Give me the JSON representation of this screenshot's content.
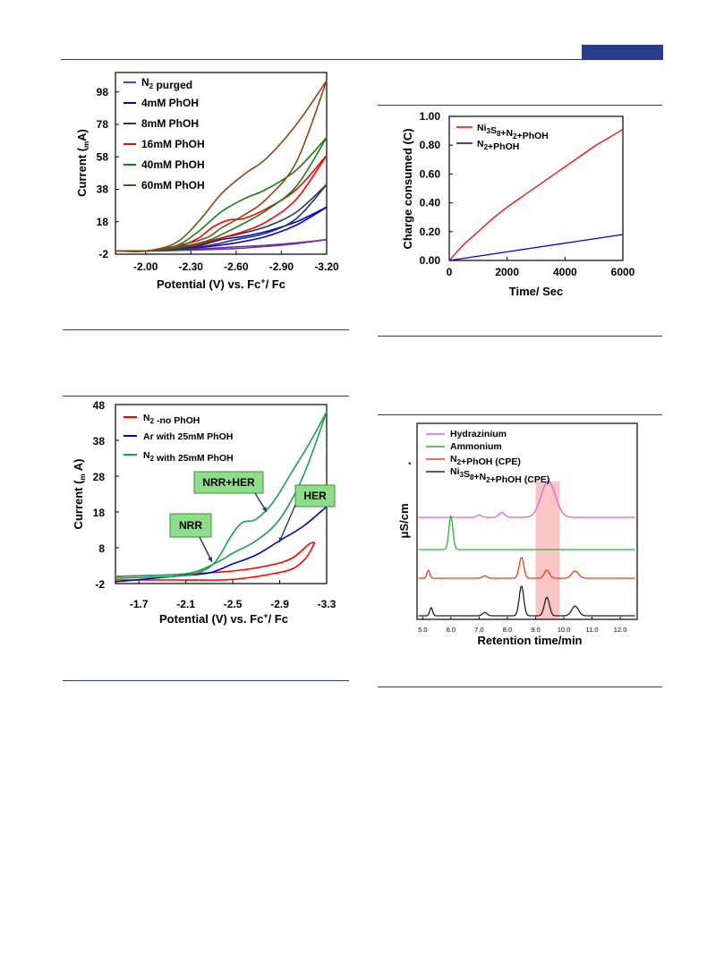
{
  "header": {
    "accent_color": "#2a3c8a",
    "rule_color": "#2e3f70"
  },
  "chart_data": [
    {
      "type": "line",
      "panel": "top-left",
      "title": "",
      "xlabel": "Potential (V) vs. Fc⁺/ Fc",
      "ylabel": "Current (μA)",
      "ylabel_prefix": "Current (",
      "ylabel_mu": "m",
      "ylabel_suffix": "A)",
      "xlabel_main": "Potential (V) vs. Fc",
      "xlabel_sup": "+",
      "xlabel_tail": "/ Fc",
      "xlim": [
        -1.8,
        -3.2
      ],
      "ylim": [
        -2,
        110
      ],
      "xticks": [
        -2.0,
        -2.3,
        -2.6,
        -2.9,
        -3.2
      ],
      "xtick_labels": [
        "-2.00",
        "-2.30",
        "-2.60",
        "-2.90",
        "-3.20"
      ],
      "yticks": [
        -2,
        18,
        38,
        58,
        78,
        98
      ],
      "ytick_labels": [
        "-2",
        "18",
        "38",
        "58",
        "78",
        "98"
      ],
      "legend_position": "top-left",
      "series": [
        {
          "name": "N₂ purged",
          "label_main": "N",
          "label_sub": "2",
          "label_tail": " purged",
          "color": "#7030a0",
          "forward": [
            [
              -1.8,
              0
            ],
            [
              -2.0,
              0
            ],
            [
              -2.2,
              0.5
            ],
            [
              -2.4,
              1.5
            ],
            [
              -2.6,
              2.5
            ],
            [
              -2.8,
              3.5
            ],
            [
              -3.0,
              5
            ],
            [
              -3.2,
              7
            ]
          ],
          "reverse": [
            [
              -3.2,
              7
            ],
            [
              -3.0,
              4.5
            ],
            [
              -2.8,
              2.8
            ],
            [
              -2.6,
              1.5
            ],
            [
              -2.4,
              0.8
            ],
            [
              -2.2,
              0.3
            ],
            [
              -2.0,
              0
            ],
            [
              -1.8,
              0
            ]
          ]
        },
        {
          "name": "4mM PhOH",
          "color": "#0000cc",
          "forward": [
            [
              -1.8,
              0
            ],
            [
              -2.0,
              0
            ],
            [
              -2.2,
              1
            ],
            [
              -2.35,
              3
            ],
            [
              -2.5,
              7
            ],
            [
              -2.65,
              9
            ],
            [
              -2.8,
              12
            ],
            [
              -3.0,
              18
            ],
            [
              -3.2,
              27
            ]
          ],
          "reverse": [
            [
              -3.2,
              27
            ],
            [
              -3.0,
              16
            ],
            [
              -2.8,
              9
            ],
            [
              -2.6,
              5
            ],
            [
              -2.4,
              2.5
            ],
            [
              -2.2,
              1
            ],
            [
              -2.0,
              0
            ],
            [
              -1.8,
              0
            ]
          ]
        },
        {
          "name": "8mM PhOH",
          "color": "#1f3864",
          "forward": [
            [
              -1.8,
              0
            ],
            [
              -2.0,
              0
            ],
            [
              -2.2,
              1.5
            ],
            [
              -2.35,
              4
            ],
            [
              -2.5,
              8
            ],
            [
              -2.6,
              10
            ],
            [
              -2.8,
              15
            ],
            [
              -3.0,
              24
            ],
            [
              -3.2,
              41
            ]
          ],
          "reverse": [
            [
              -3.2,
              41
            ],
            [
              -3.0,
              20
            ],
            [
              -2.8,
              11
            ],
            [
              -2.6,
              7
            ],
            [
              -2.4,
              3
            ],
            [
              -2.2,
              1
            ],
            [
              -2.0,
              0
            ],
            [
              -1.8,
              0
            ]
          ]
        },
        {
          "name": "16mM PhOH",
          "color": "#ff0000",
          "forward": [
            [
              -1.8,
              0
            ],
            [
              -2.0,
              0
            ],
            [
              -2.2,
              2
            ],
            [
              -2.35,
              8
            ],
            [
              -2.45,
              15
            ],
            [
              -2.55,
              19
            ],
            [
              -2.65,
              20
            ],
            [
              -2.8,
              26
            ],
            [
              -3.0,
              38
            ],
            [
              -3.2,
              59
            ]
          ],
          "reverse": [
            [
              -3.2,
              59
            ],
            [
              -3.0,
              32
            ],
            [
              -2.8,
              18
            ],
            [
              -2.65,
              12
            ],
            [
              -2.5,
              8
            ],
            [
              -2.4,
              5
            ],
            [
              -2.2,
              2
            ],
            [
              -2.0,
              0
            ],
            [
              -1.8,
              0
            ]
          ]
        },
        {
          "name": "40mM PhOH",
          "color": "#1a7a1a",
          "forward": [
            [
              -1.8,
              0
            ],
            [
              -2.0,
              0
            ],
            [
              -2.2,
              3
            ],
            [
              -2.35,
              12
            ],
            [
              -2.5,
              24
            ],
            [
              -2.65,
              32
            ],
            [
              -2.8,
              38
            ],
            [
              -3.0,
              50
            ],
            [
              -3.2,
              70
            ]
          ],
          "reverse": [
            [
              -3.2,
              70
            ],
            [
              -3.0,
              40
            ],
            [
              -2.8,
              25
            ],
            [
              -2.65,
              17
            ],
            [
              -2.5,
              10
            ],
            [
              -2.4,
              6
            ],
            [
              -2.2,
              2
            ],
            [
              -2.0,
              0
            ],
            [
              -1.8,
              0
            ]
          ]
        },
        {
          "name": "60mM PhOH",
          "color": "#8b4513",
          "forward": [
            [
              -1.8,
              0
            ],
            [
              -2.0,
              0
            ],
            [
              -2.2,
              5
            ],
            [
              -2.35,
              18
            ],
            [
              -2.5,
              35
            ],
            [
              -2.65,
              47
            ],
            [
              -2.8,
              57
            ],
            [
              -3.0,
              78
            ],
            [
              -3.2,
              105
            ]
          ],
          "reverse": [
            [
              -3.2,
              105
            ],
            [
              -3.0,
              55
            ],
            [
              -2.8,
              32
            ],
            [
              -2.65,
              22
            ],
            [
              -2.5,
              14
            ],
            [
              -2.4,
              8
            ],
            [
              -2.2,
              3
            ],
            [
              -2.0,
              0
            ],
            [
              -1.8,
              0
            ]
          ]
        }
      ]
    },
    {
      "type": "line",
      "panel": "top-right",
      "title": "",
      "xlabel": "Time/ Sec",
      "ylabel": "Charge consumed (C)",
      "xlim": [
        0,
        6000
      ],
      "ylim": [
        0,
        1.0
      ],
      "xticks": [
        0,
        2000,
        4000,
        6000
      ],
      "xtick_labels": [
        "0",
        "2000",
        "4000",
        "6000"
      ],
      "yticks": [
        0,
        0.2,
        0.4,
        0.6,
        0.8,
        1.0
      ],
      "ytick_labels": [
        "0.00",
        "0.20",
        "0.40",
        "0.60",
        "0.80",
        "1.00"
      ],
      "legend_position": "top-left",
      "series": [
        {
          "name": "Ni₃S₈+N₂+PhOH",
          "color": "#ff0000",
          "x": [
            0,
            500,
            1000,
            1500,
            2000,
            2500,
            3000,
            3500,
            4000,
            4500,
            5000,
            5500,
            6000
          ],
          "y": [
            0,
            0.11,
            0.2,
            0.29,
            0.37,
            0.44,
            0.51,
            0.58,
            0.65,
            0.72,
            0.79,
            0.85,
            0.91
          ]
        },
        {
          "name": "N₂+PhOH",
          "color": "#0000cc",
          "x": [
            0,
            6000
          ],
          "y": [
            0,
            0.18
          ]
        }
      ]
    },
    {
      "type": "line",
      "panel": "bottom-left",
      "title": "",
      "xlabel": "Potential (V) vs. Fc⁺/ Fc",
      "ylabel": "Current (μA)",
      "xlim": [
        -1.5,
        -3.3
      ],
      "ylim": [
        -2,
        48
      ],
      "xticks": [
        -1.7,
        -2.1,
        -2.5,
        -2.9,
        -3.3
      ],
      "xtick_labels": [
        "-1.7",
        "-2.1",
        "-2.5",
        "-2.9",
        "-3.3"
      ],
      "yticks": [
        -2,
        8,
        18,
        28,
        38,
        48
      ],
      "ytick_labels": [
        "-2",
        "8",
        "18",
        "28",
        "38",
        "48"
      ],
      "legend_position": "top-left",
      "annotations": [
        "NRR",
        "NRR+HER",
        "HER"
      ],
      "series": [
        {
          "name": "N₂ -no PhOH",
          "color": "#ff0000",
          "forward": [
            [
              -1.5,
              0
            ],
            [
              -2.0,
              0.5
            ],
            [
              -2.5,
              1.5
            ],
            [
              -2.8,
              3
            ],
            [
              -3.0,
              5
            ],
            [
              -3.15,
              9
            ],
            [
              -3.2,
              9.5
            ]
          ],
          "reverse": [
            [
              -3.2,
              9.5
            ],
            [
              -3.12,
              5
            ],
            [
              -3.0,
              2
            ],
            [
              -2.8,
              0.5
            ],
            [
              -2.6,
              -0.5
            ],
            [
              -2.4,
              -1
            ],
            [
              -2.0,
              -1
            ],
            [
              -1.5,
              -1
            ]
          ]
        },
        {
          "name": "Ar with 25mM PhOH",
          "color": "#0000cc",
          "forward": [
            [
              -1.5,
              -1.5
            ],
            [
              -2.0,
              0
            ],
            [
              -2.3,
              1
            ],
            [
              -2.5,
              3.5
            ],
            [
              -2.7,
              6
            ],
            [
              -2.9,
              10
            ],
            [
              -3.1,
              14
            ],
            [
              -3.3,
              19.5
            ]
          ]
        },
        {
          "name": "N₂ with 25mM PhOH",
          "color": "#1aa050",
          "forward": [
            [
              -1.5,
              -0.5
            ],
            [
              -2.0,
              0
            ],
            [
              -2.2,
              1
            ],
            [
              -2.35,
              4
            ],
            [
              -2.48,
              11
            ],
            [
              -2.58,
              15
            ],
            [
              -2.7,
              16
            ],
            [
              -2.85,
              21
            ],
            [
              -3.0,
              29
            ],
            [
              -3.15,
              37
            ],
            [
              -3.3,
              46
            ]
          ],
          "reverse": [
            [
              -3.3,
              46
            ],
            [
              -3.1,
              28
            ],
            [
              -2.9,
              16
            ],
            [
              -2.7,
              10
            ],
            [
              -2.5,
              6.5
            ],
            [
              -2.4,
              4.5
            ],
            [
              -2.2,
              1.5
            ],
            [
              -2.0,
              0.5
            ],
            [
              -1.5,
              0
            ]
          ]
        }
      ]
    },
    {
      "type": "line",
      "panel": "bottom-right",
      "title": "",
      "xlabel": "Retention time/min",
      "ylabel": "μS/cm",
      "xlim": [
        4.8,
        12.6
      ],
      "xticks": [
        5.0,
        6.0,
        7.0,
        8.0,
        9.0,
        10.0,
        11.0,
        12.0
      ],
      "xtick_labels": [
        "5.0",
        "6.0",
        "7.0",
        "8.0",
        "9.0",
        "10.0",
        "11.0",
        "12.0"
      ],
      "highlight_range": [
        9.0,
        9.85
      ],
      "highlight_color": "#f7b6b6",
      "legend_position": "top-left",
      "series": [
        {
          "name": "Hydrazinium",
          "color": "#e060e0",
          "baseline": 3,
          "peaks": [
            [
              7.0,
              0.3,
              0.08
            ],
            [
              7.8,
              0.6,
              0.1
            ],
            [
              9.45,
              4.5,
              0.25
            ]
          ]
        },
        {
          "name": "Ammonium",
          "color": "#22bb33",
          "baseline": 2,
          "peaks": [
            [
              6.0,
              4.2,
              0.07
            ]
          ]
        },
        {
          "name": "N₂+PhOH (CPE)",
          "color": "#e84020",
          "baseline": 1,
          "peaks": [
            [
              5.2,
              1.0,
              0.05
            ],
            [
              7.2,
              0.3,
              0.08
            ],
            [
              8.5,
              2.6,
              0.08
            ],
            [
              9.4,
              1.0,
              0.09
            ],
            [
              10.4,
              0.9,
              0.12
            ]
          ]
        },
        {
          "name": "Ni₃S₈+N₂+PhOH (CPE)",
          "color": "#222222",
          "baseline": 0,
          "peaks": [
            [
              5.3,
              1.0,
              0.05
            ],
            [
              7.2,
              0.4,
              0.08
            ],
            [
              8.5,
              3.7,
              0.08
            ],
            [
              9.4,
              2.3,
              0.09
            ],
            [
              10.4,
              1.2,
              0.12
            ]
          ]
        }
      ]
    }
  ]
}
